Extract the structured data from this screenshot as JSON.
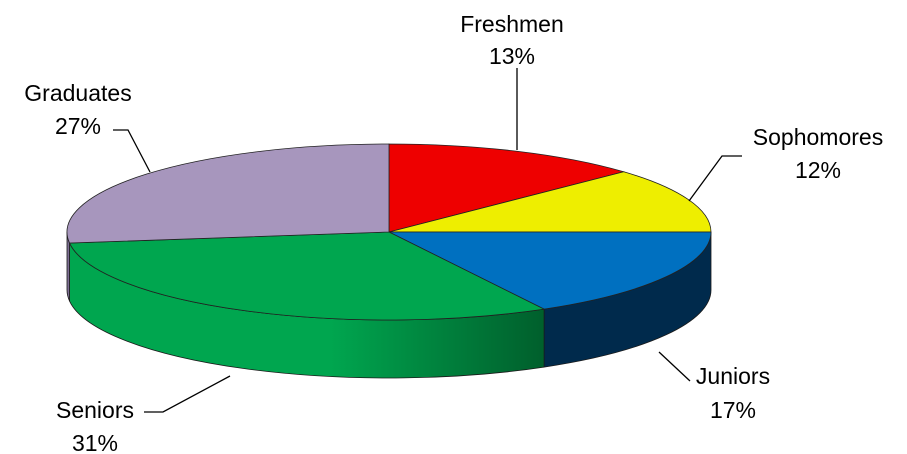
{
  "chart_data": {
    "type": "pie",
    "title": "",
    "style": "3d-tilted",
    "slices": [
      {
        "label": "Freshmen",
        "value": 13,
        "pct_label": "13%",
        "color": "#ee0000",
        "side_color": "#b00000"
      },
      {
        "label": "Sophomores",
        "value": 12,
        "pct_label": "12%",
        "color": "#eeee00",
        "side_color": "#b0b000"
      },
      {
        "label": "Juniors",
        "value": 17,
        "pct_label": "17%",
        "color": "#0070c0",
        "side_color": "#002a4c"
      },
      {
        "label": "Seniors",
        "value": 31,
        "pct_label": "31%",
        "color": "#00a64f",
        "side_color": "#00843d"
      },
      {
        "label": "Graduates",
        "value": 27,
        "pct_label": "27%",
        "color": "#a796bd",
        "side_color": "#7d6e93"
      }
    ],
    "start_position": "top-center",
    "direction": "clockwise",
    "legend": "none"
  }
}
